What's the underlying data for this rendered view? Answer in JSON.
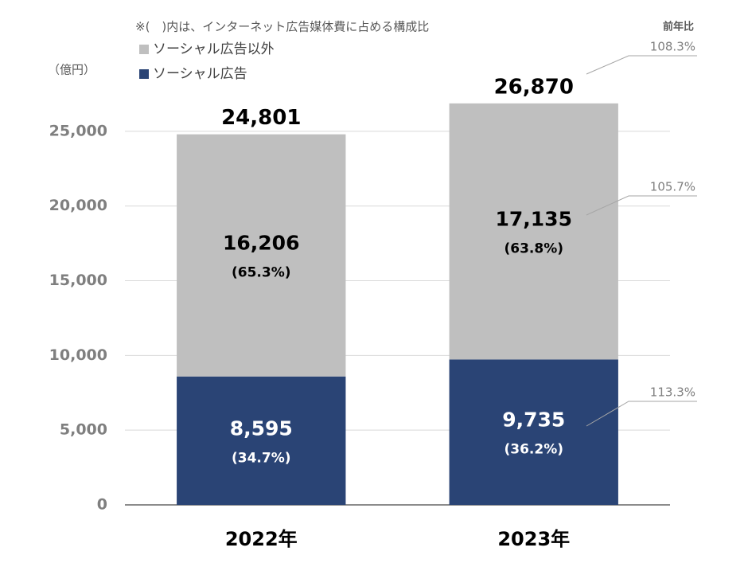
{
  "chart_data": {
    "type": "stacked_bar",
    "note": "※(　)内は、インターネット広告媒体費に占める構成比",
    "y_unit": "（億円）",
    "yoy_title": "前年比",
    "categories": [
      "2022年",
      "2023年"
    ],
    "series": [
      {
        "name": "ソーシャル広告",
        "color": "#2a4475",
        "values": [
          8595,
          9735
        ],
        "value_labels": [
          "8,595",
          "9,735"
        ],
        "share_labels": [
          "(34.7%)",
          "(36.2%)"
        ],
        "yoy_label": "113.3%"
      },
      {
        "name": "ソーシャル広告以外",
        "color": "#bfbfbf",
        "values": [
          16206,
          17135
        ],
        "value_labels": [
          "16,206",
          "17,135"
        ],
        "share_labels": [
          "(65.3%)",
          "(63.8%)"
        ],
        "yoy_label": "105.7%"
      }
    ],
    "totals": {
      "values": [
        24801,
        26870
      ],
      "value_labels": [
        "24,801",
        "26,870"
      ],
      "yoy_label": "108.3%"
    },
    "ylim": [
      0,
      27500
    ],
    "yticks": [
      0,
      {
        "value": 5000,
        "label": "5,000"
      },
      {
        "value": 10000,
        "label": "10,000"
      },
      {
        "value": 15000,
        "label": "15,000"
      },
      {
        "value": 20000,
        "label": "20,000"
      },
      {
        "value": 25000,
        "label": "25,000"
      }
    ],
    "grid": true
  }
}
